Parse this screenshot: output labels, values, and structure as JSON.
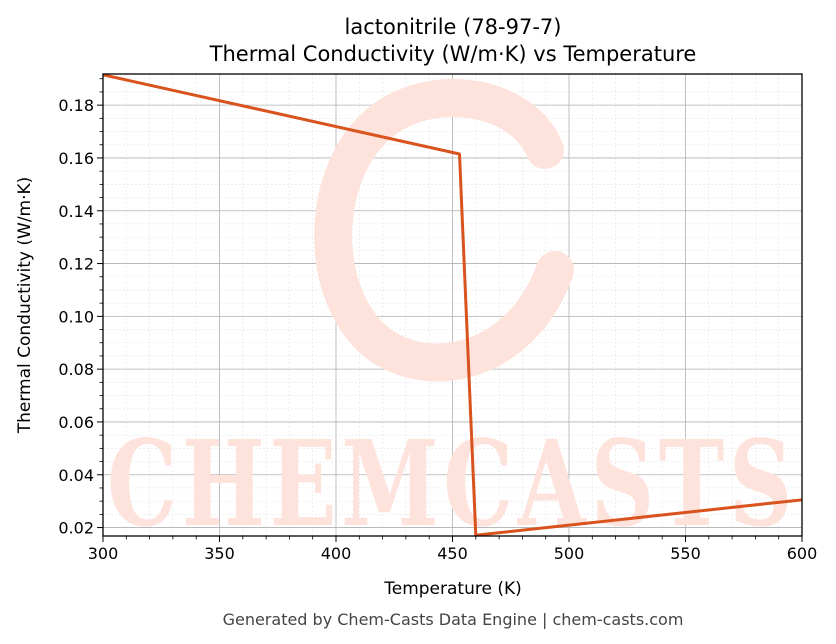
{
  "chart_data": {
    "type": "line",
    "title": "lactonitrile (78-97-7)",
    "subtitle": "Thermal Conductivity (W/m·K) vs Temperature",
    "xlabel": "Temperature (K)",
    "ylabel": "Thermal Conductivity (W/m·K)",
    "xlim": [
      300,
      600
    ],
    "ylim": [
      0.0168,
      0.1918
    ],
    "xticks": [
      300,
      350,
      400,
      450,
      500,
      550,
      600
    ],
    "yticks": [
      0.02,
      0.04,
      0.06,
      0.08,
      0.1,
      0.12,
      0.14,
      0.16,
      0.18
    ],
    "ytick_labels": [
      "0.02",
      "0.04",
      "0.06",
      "0.08",
      "0.10",
      "0.12",
      "0.14",
      "0.16",
      "0.18"
    ],
    "grid": true,
    "line_color": "#d9531e",
    "series": [
      {
        "x": [
          300,
          453,
          460,
          600
        ],
        "y": [
          0.1915,
          0.1615,
          0.0171,
          0.0305
        ]
      }
    ]
  },
  "watermark": {
    "text": "CHEMCASTS",
    "color": "#fde3dc"
  },
  "footer": "Generated by Chem-Casts Data Engine | chem-casts.com"
}
